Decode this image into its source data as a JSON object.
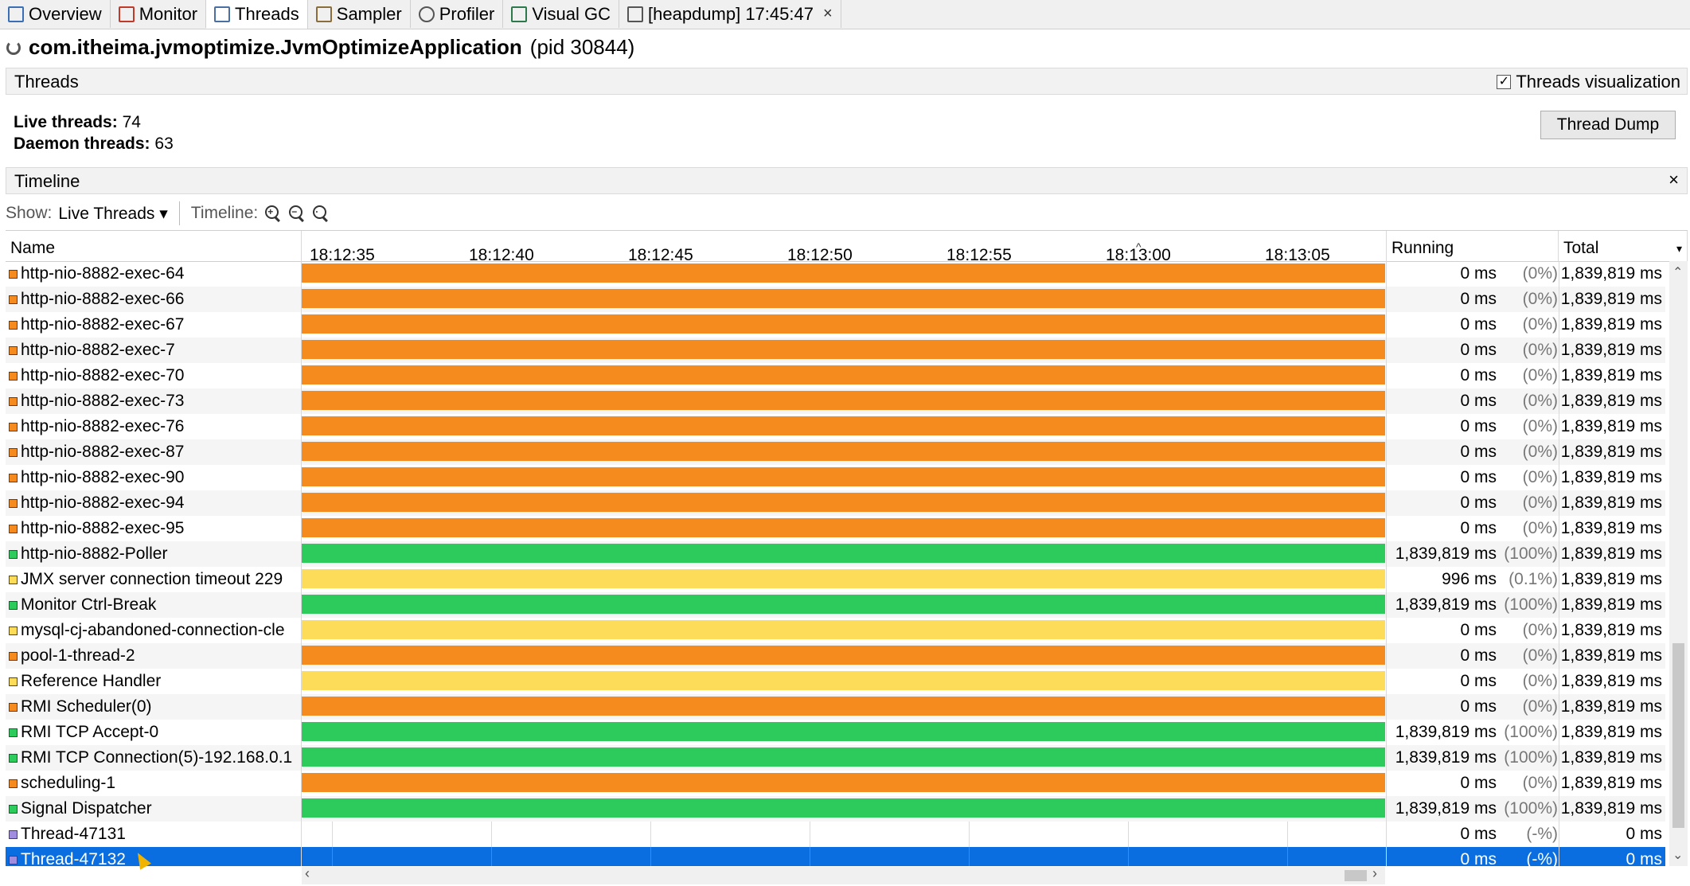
{
  "tabs": [
    {
      "label": "Overview",
      "icon": "overview-icon"
    },
    {
      "label": "Monitor",
      "icon": "monitor-icon"
    },
    {
      "label": "Threads",
      "icon": "threads-icon",
      "active": true
    },
    {
      "label": "Sampler",
      "icon": "sampler-icon"
    },
    {
      "label": "Profiler",
      "icon": "profiler-icon"
    },
    {
      "label": "Visual GC",
      "icon": "visualgc-icon"
    },
    {
      "label": "[heapdump] 17:45:47",
      "icon": "heapdump-icon",
      "closable": true
    }
  ],
  "app": {
    "name": "com.itheima.jvmoptimize.JvmOptimizeApplication",
    "pid": "(pid 30844)"
  },
  "threads_section": {
    "title": "Threads",
    "viz_label": "Threads visualization",
    "viz_checked": true
  },
  "stats": {
    "live_label": "Live threads:",
    "live_value": "74",
    "daemon_label": "Daemon threads:",
    "daemon_value": "63",
    "dump_button": "Thread Dump"
  },
  "timeline_section": {
    "title": "Timeline",
    "close": "×"
  },
  "toolbar": {
    "show_label": "Show:",
    "show_value": "Live Threads",
    "timeline_label": "Timeline:"
  },
  "columns": {
    "name": "Name",
    "running": "Running",
    "total": "Total"
  },
  "ticks": [
    "18:12:35",
    "18:12:40",
    "18:12:45",
    "18:12:50",
    "18:12:55",
    "18:13:00",
    "18:13:05"
  ],
  "colors": {
    "waiting": "#f58a1f",
    "running": "#2dca5c",
    "sleeping": "#fcdc58",
    "park": "#a08de0",
    "selected": "#0a6ee0"
  },
  "threads": [
    {
      "name": "http-nio-8882-exec-64",
      "state": "waiting",
      "running": "0 ms",
      "pct": "(0%)",
      "total": "1,839,819 ms"
    },
    {
      "name": "http-nio-8882-exec-66",
      "state": "waiting",
      "running": "0 ms",
      "pct": "(0%)",
      "total": "1,839,819 ms"
    },
    {
      "name": "http-nio-8882-exec-67",
      "state": "waiting",
      "running": "0 ms",
      "pct": "(0%)",
      "total": "1,839,819 ms"
    },
    {
      "name": "http-nio-8882-exec-7",
      "state": "waiting",
      "running": "0 ms",
      "pct": "(0%)",
      "total": "1,839,819 ms"
    },
    {
      "name": "http-nio-8882-exec-70",
      "state": "waiting",
      "running": "0 ms",
      "pct": "(0%)",
      "total": "1,839,819 ms"
    },
    {
      "name": "http-nio-8882-exec-73",
      "state": "waiting",
      "running": "0 ms",
      "pct": "(0%)",
      "total": "1,839,819 ms"
    },
    {
      "name": "http-nio-8882-exec-76",
      "state": "waiting",
      "running": "0 ms",
      "pct": "(0%)",
      "total": "1,839,819 ms"
    },
    {
      "name": "http-nio-8882-exec-87",
      "state": "waiting",
      "running": "0 ms",
      "pct": "(0%)",
      "total": "1,839,819 ms"
    },
    {
      "name": "http-nio-8882-exec-90",
      "state": "waiting",
      "running": "0 ms",
      "pct": "(0%)",
      "total": "1,839,819 ms"
    },
    {
      "name": "http-nio-8882-exec-94",
      "state": "waiting",
      "running": "0 ms",
      "pct": "(0%)",
      "total": "1,839,819 ms"
    },
    {
      "name": "http-nio-8882-exec-95",
      "state": "waiting",
      "running": "0 ms",
      "pct": "(0%)",
      "total": "1,839,819 ms"
    },
    {
      "name": "http-nio-8882-Poller",
      "state": "running",
      "running": "1,839,819 ms",
      "pct": "(100%)",
      "total": "1,839,819 ms"
    },
    {
      "name": "JMX server connection timeout 229",
      "state": "sleeping",
      "running": "996 ms",
      "pct": "(0.1%)",
      "total": "1,839,819 ms"
    },
    {
      "name": "Monitor Ctrl-Break",
      "state": "running",
      "running": "1,839,819 ms",
      "pct": "(100%)",
      "total": "1,839,819 ms"
    },
    {
      "name": "mysql-cj-abandoned-connection-cle",
      "state": "sleeping",
      "running": "0 ms",
      "pct": "(0%)",
      "total": "1,839,819 ms"
    },
    {
      "name": "pool-1-thread-2",
      "state": "waiting",
      "running": "0 ms",
      "pct": "(0%)",
      "total": "1,839,819 ms"
    },
    {
      "name": "Reference Handler",
      "state": "sleeping",
      "running": "0 ms",
      "pct": "(0%)",
      "total": "1,839,819 ms"
    },
    {
      "name": "RMI Scheduler(0)",
      "state": "waiting",
      "running": "0 ms",
      "pct": "(0%)",
      "total": "1,839,819 ms"
    },
    {
      "name": "RMI TCP Accept-0",
      "state": "running",
      "running": "1,839,819 ms",
      "pct": "(100%)",
      "total": "1,839,819 ms"
    },
    {
      "name": "RMI TCP Connection(5)-192.168.0.1",
      "state": "running",
      "running": "1,839,819 ms",
      "pct": "(100%)",
      "total": "1,839,819 ms"
    },
    {
      "name": "scheduling-1",
      "state": "waiting",
      "running": "0 ms",
      "pct": "(0%)",
      "total": "1,839,819 ms"
    },
    {
      "name": "Signal Dispatcher",
      "state": "running",
      "running": "1,839,819 ms",
      "pct": "(100%)",
      "total": "1,839,819 ms"
    },
    {
      "name": "Thread-47131",
      "state": "park",
      "running": "0 ms",
      "pct": "(-%)",
      "total": "0 ms"
    },
    {
      "name": "Thread-47132",
      "state": "park",
      "running": "0 ms",
      "pct": "(-%)",
      "total": "0 ms",
      "selected": true
    }
  ]
}
